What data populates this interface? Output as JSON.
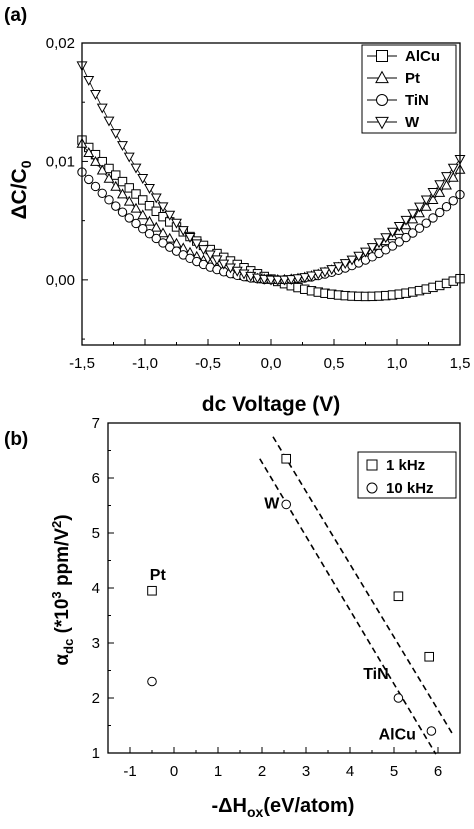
{
  "chart_data": [
    {
      "panel_label": "(a)",
      "type": "scatter",
      "xlabel": "dc Voltage (V)",
      "ylabel_main": "ΔC/C",
      "ylabel_sub": "0",
      "xlim": [
        -1.5,
        1.5
      ],
      "ylim": [
        -0.0055,
        0.02
      ],
      "xticks": [
        -1.5,
        -1.0,
        -0.5,
        0.0,
        0.5,
        1.0,
        1.5
      ],
      "xtick_labels": [
        "-1,5",
        "-1,0",
        "-0,5",
        "0,0",
        "0,5",
        "1,0",
        "1,5"
      ],
      "yticks": [
        0.0,
        0.01,
        0.02
      ],
      "ytick_labels": [
        "0,00",
        "0,01",
        "0,02"
      ],
      "legend_position": "top-right",
      "series": [
        {
          "name": "AlCu",
          "marker": "square",
          "vertex_x": 0.75,
          "y_left": 0.0118,
          "y_right": 0.0001,
          "y_vertex": -0.0014
        },
        {
          "name": "Pt",
          "marker": "triangle-up",
          "vertex_x": 0.05,
          "y_left": 0.0115,
          "y_right": 0.0093,
          "y_vertex": 0.0
        },
        {
          "name": "TiN",
          "marker": "circle",
          "vertex_x": 0.05,
          "y_left": 0.0091,
          "y_right": 0.0072,
          "y_vertex": 0.0
        },
        {
          "name": "W",
          "marker": "triangle-down",
          "vertex_x": 0.05,
          "y_left": 0.0181,
          "y_right": 0.0102,
          "y_vertex": 0.0
        }
      ]
    },
    {
      "panel_label": "(b)",
      "type": "scatter",
      "xlabel_main": "-ΔH",
      "xlabel_sub": "ox",
      "xlabel_tail": "(eV/atom)",
      "ylabel_main": "α",
      "ylabel_sub": "dc",
      "ylabel_tail": " (*10",
      "ylabel_sup": "3",
      "ylabel_tail2": " ppm/V",
      "ylabel_sup2": "2",
      "ylabel_close": ")",
      "xlim": [
        -1.5,
        6.5
      ],
      "ylim": [
        1,
        7
      ],
      "xticks": [
        -1,
        0,
        1,
        2,
        3,
        4,
        5,
        6
      ],
      "xtick_labels": [
        "-1",
        "0",
        "1",
        "2",
        "3",
        "4",
        "5",
        "6"
      ],
      "yticks": [
        1,
        2,
        3,
        4,
        5,
        6,
        7
      ],
      "ytick_labels": [
        "1",
        "2",
        "3",
        "4",
        "5",
        "6",
        "7"
      ],
      "legend_position": "top-right",
      "series": [
        {
          "name": "1 kHz",
          "marker": "square",
          "points": [
            [
              -0.5,
              3.95
            ],
            [
              2.55,
              6.35
            ],
            [
              5.1,
              3.85
            ],
            [
              5.8,
              2.75
            ]
          ]
        },
        {
          "name": "10 kHz",
          "marker": "circle",
          "points": [
            [
              -0.5,
              2.3
            ],
            [
              2.55,
              5.52
            ],
            [
              5.1,
              2.0
            ],
            [
              5.85,
              1.4
            ]
          ]
        }
      ],
      "trend_lines": [
        {
          "from": [
            2.25,
            6.75
          ],
          "to": [
            6.35,
            1.32
          ]
        },
        {
          "from": [
            1.95,
            6.35
          ],
          "to": [
            5.95,
            0.98
          ]
        }
      ],
      "annotations": [
        {
          "text": "Pt",
          "x": -0.55,
          "y": 4.15
        },
        {
          "text": "W",
          "x": 2.05,
          "y": 5.45
        },
        {
          "text": "TiN",
          "x": 4.3,
          "y": 2.35
        },
        {
          "text": "AlCu",
          "x": 4.65,
          "y": 1.25
        }
      ]
    }
  ]
}
